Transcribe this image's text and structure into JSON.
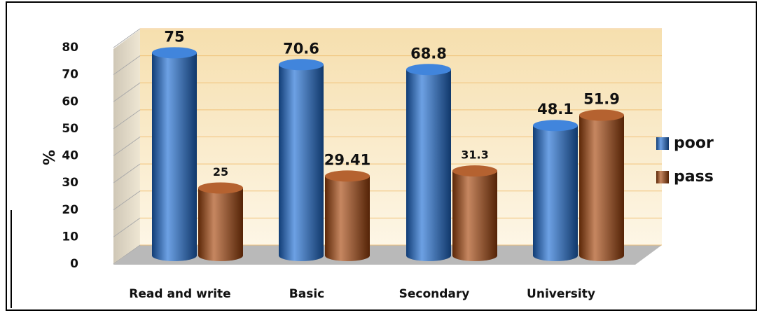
{
  "chart_data": {
    "type": "bar",
    "y_label": "%",
    "categories": [
      "Read and write",
      "Basic",
      "Secondary",
      "University"
    ],
    "series": [
      {
        "name": "poor",
        "color": "#1f6fd6",
        "values": [
          75,
          70.6,
          68.8,
          48.1
        ]
      },
      {
        "name": "pass",
        "color": "#a8460c",
        "values": [
          25,
          29.41,
          31.3,
          51.9
        ]
      }
    ],
    "ylim": [
      0,
      80
    ],
    "yticks": [
      0,
      10,
      20,
      30,
      40,
      50,
      60,
      70,
      80
    ],
    "grid": true,
    "legend": "right"
  }
}
